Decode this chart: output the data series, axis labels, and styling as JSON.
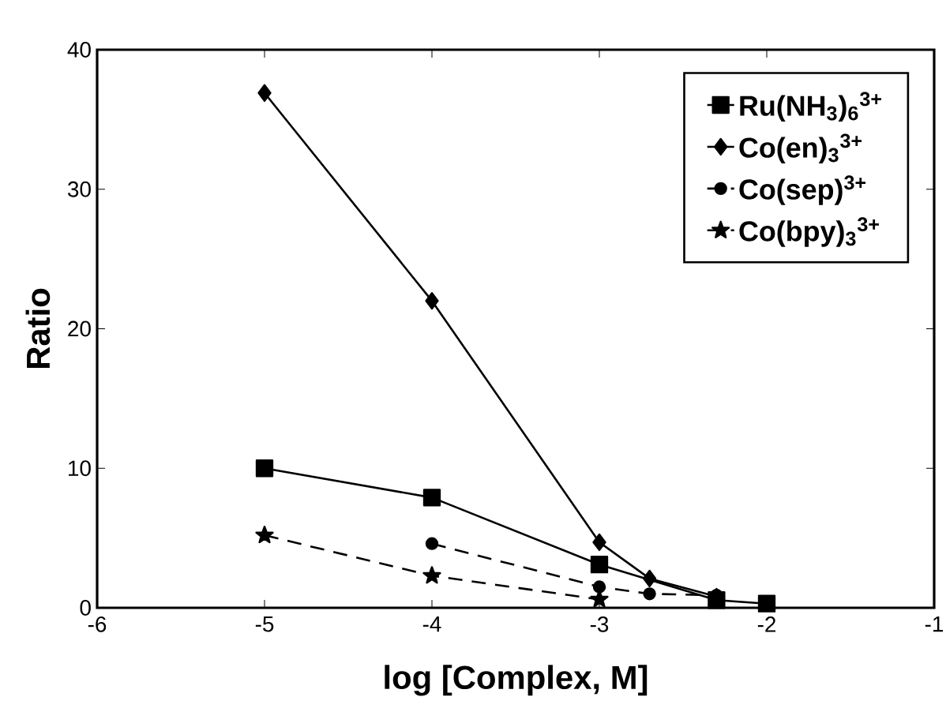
{
  "chart_data": {
    "type": "line",
    "xlabel": "log [Complex, M]",
    "ylabel": "Ratio",
    "xlim": [
      -6,
      -1
    ],
    "ylim": [
      0,
      40
    ],
    "xticks": [
      -6,
      -5,
      -4,
      -3,
      -2,
      -1
    ],
    "yticks": [
      0,
      10,
      20,
      30,
      40
    ],
    "grid": false,
    "legend": "top right",
    "series": [
      {
        "name": "Ru(NH$_{3}$)$_{6}$$^{3+}$",
        "color": "#000000",
        "marker": "square",
        "line_style": "solid",
        "x": [
          -5,
          -4,
          -3,
          -2.3,
          -2
        ],
        "values": [
          10.0,
          7.9,
          3.1,
          0.55,
          0.3
        ]
      },
      {
        "name": "Co(en)$_{3}$$^{3+}$",
        "color": "#000000",
        "marker": "diamond",
        "line_style": "solid",
        "x": [
          -5,
          -4,
          -3,
          -2.7,
          -2.3
        ],
        "values": [
          36.9,
          22.0,
          4.7,
          2.1,
          0.8
        ]
      },
      {
        "name": "Co(sep)$^{3+}$",
        "color": "#000000",
        "marker": "circle",
        "line_style": "dashed",
        "x": [
          -4,
          -3,
          -2.7,
          -2.3
        ],
        "values": [
          4.6,
          1.5,
          1.0,
          0.9
        ]
      },
      {
        "name": "Co(bpy)$_{3}$$^{3+}$",
        "color": "#000000",
        "marker": "star",
        "line_style": "dashed",
        "x": [
          -5,
          -4,
          -3
        ],
        "values": [
          5.2,
          2.3,
          0.6
        ]
      }
    ]
  }
}
